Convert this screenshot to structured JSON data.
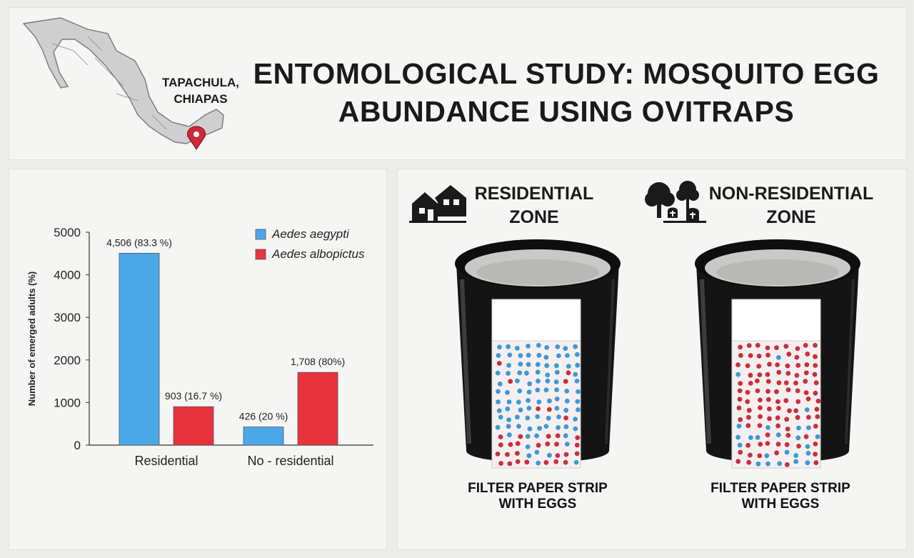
{
  "header": {
    "title_line1": "ENTOMOLOGICAL STUDY: MOSQUITO EGG",
    "title_line2": "ABUNDANCE USING OVITRAPS",
    "map_label_line1": "TAPACHULA,",
    "map_label_line2": "CHIAPAS",
    "map_icon": "location-pin-icon"
  },
  "chart_data": {
    "type": "bar",
    "categories": [
      "Residential",
      "No - residential"
    ],
    "series": [
      {
        "name": "Aedes aegypti",
        "color": "#4aa8e8",
        "values": [
          4506,
          426
        ],
        "labels": [
          "4,506 (83.3 %)",
          "426 (20 %)"
        ]
      },
      {
        "name": "Aedes albopictus",
        "color": "#e8333f",
        "values": [
          903,
          1708
        ],
        "labels": [
          "903 (16.7 %)",
          "1,708 (80%)"
        ]
      }
    ],
    "ylabel": "Number of emerged adults (%)",
    "xlabel": "",
    "ylim": [
      0,
      5000
    ],
    "yticks": [
      "0",
      "1000",
      "2000",
      "3000",
      "4000",
      "5000"
    ],
    "legend_position": "top-right",
    "grid": false
  },
  "zones": [
    {
      "title_line1": "RESIDENTIAL",
      "title_line2": "ZONE",
      "icon": "houses-icon",
      "caption_line1": "FILTER PAPER STRIP",
      "caption_line2": "WITH EGGS",
      "dominant": "blue"
    },
    {
      "title_line1": "NON-RESIDENTIAL",
      "title_line2": "ZONE",
      "icon": "trees-graves-icon",
      "caption_line1": "FILTER PAPER STRIP",
      "caption_line2": "WITH EGGS",
      "dominant": "red"
    }
  ]
}
